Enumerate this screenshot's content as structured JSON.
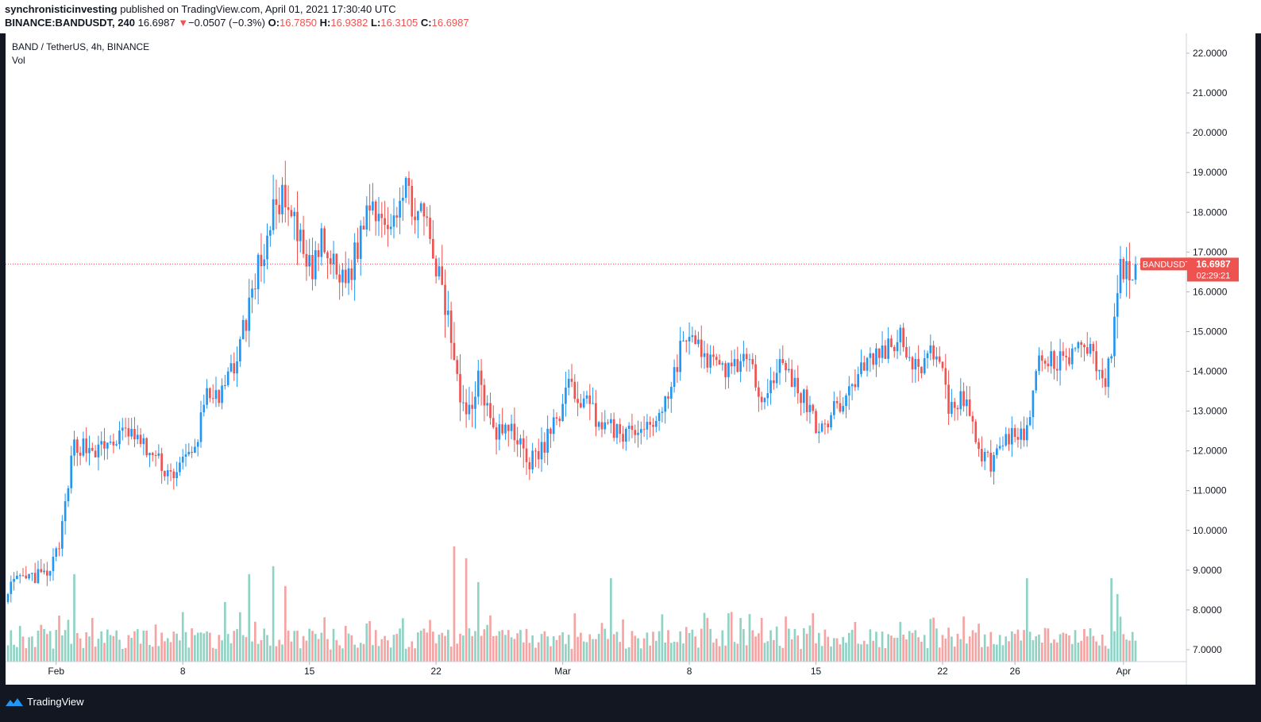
{
  "header": {
    "author": "synchronisticinvesting",
    "published_text": "published on TradingView.com, April 01, 2021 17:30:40 UTC",
    "symbol": "BINANCE:BANDUSDT, 240",
    "last": "16.6987",
    "change_icon": "triangle-down-icon",
    "change_arrow": "▼",
    "change": "−0.0507 (−0.3%)",
    "o_label": "O:",
    "o_value": "16.7850",
    "h_label": "H:",
    "h_value": "16.9382",
    "l_label": "L:",
    "l_value": "16.3105",
    "c_label": "C:",
    "c_value": "16.6987"
  },
  "chart_labels": {
    "title": "BAND / TetherUS, 4h, BINANCE",
    "volume": "Vol"
  },
  "price_tag": {
    "symbol": "BANDUSDT",
    "price": "16.6987",
    "countdown": "02:29:21"
  },
  "footer": {
    "brand": "TradingView",
    "logo_icon": "tradingview-logo-icon"
  },
  "colors": {
    "up": "#2196f3",
    "down": "#ef5350",
    "vol_up": "#8fd3c5",
    "vol_down": "#f5a3a3",
    "price_line": "#ef5350",
    "grid_border": "#cfd3dc"
  },
  "chart_data": {
    "type": "candlestick",
    "title": "BAND / TetherUS, 4h, BINANCE",
    "timeframe": "4h",
    "y_ticks": [
      "22.0000",
      "21.0000",
      "20.0000",
      "19.0000",
      "18.0000",
      "17.0000",
      "16.0000",
      "15.0000",
      "14.0000",
      "13.0000",
      "12.0000",
      "11.0000",
      "10.0000",
      "9.0000",
      "8.0000",
      "7.0000"
    ],
    "y_range": [
      6.7,
      22.5
    ],
    "x_ticks": [
      {
        "label": "Feb",
        "index": 16
      },
      {
        "label": "8",
        "index": 58
      },
      {
        "label": "15",
        "index": 100
      },
      {
        "label": "22",
        "index": 142
      },
      {
        "label": "Mar",
        "index": 184
      },
      {
        "label": "8",
        "index": 226
      },
      {
        "label": "15",
        "index": 268
      },
      {
        "label": "22",
        "index": 310
      },
      {
        "label": "26",
        "index": 334
      },
      {
        "label": "Apr",
        "index": 370
      }
    ],
    "last_price": 16.6987,
    "anchors": [
      [
        0,
        8.6,
        0.25
      ],
      [
        8,
        8.8,
        0.25
      ],
      [
        14,
        8.9,
        0.25
      ],
      [
        18,
        10.0,
        0.3
      ],
      [
        22,
        12.2,
        0.35
      ],
      [
        30,
        12.0,
        0.3
      ],
      [
        40,
        12.5,
        0.3
      ],
      [
        54,
        11.4,
        0.3
      ],
      [
        62,
        12.0,
        0.3
      ],
      [
        66,
        13.6,
        0.35
      ],
      [
        70,
        13.2,
        0.3
      ],
      [
        76,
        14.4,
        0.35
      ],
      [
        82,
        16.3,
        0.5
      ],
      [
        90,
        18.4,
        0.6
      ],
      [
        96,
        17.4,
        0.55
      ],
      [
        100,
        16.5,
        0.55
      ],
      [
        104,
        17.2,
        0.5
      ],
      [
        110,
        16.3,
        0.5
      ],
      [
        114,
        16.6,
        0.5
      ],
      [
        120,
        18.3,
        0.5
      ],
      [
        126,
        17.8,
        0.45
      ],
      [
        132,
        18.5,
        0.5
      ],
      [
        138,
        17.8,
        0.45
      ],
      [
        143,
        16.3,
        0.5
      ],
      [
        148,
        14.5,
        0.6
      ],
      [
        152,
        12.8,
        0.55
      ],
      [
        156,
        13.9,
        0.5
      ],
      [
        162,
        12.6,
        0.45
      ],
      [
        168,
        12.4,
        0.45
      ],
      [
        174,
        11.7,
        0.45
      ],
      [
        180,
        12.4,
        0.4
      ],
      [
        186,
        13.6,
        0.4
      ],
      [
        192,
        13.2,
        0.4
      ],
      [
        198,
        12.6,
        0.35
      ],
      [
        206,
        12.4,
        0.3
      ],
      [
        214,
        12.7,
        0.3
      ],
      [
        220,
        13.6,
        0.35
      ],
      [
        224,
        14.9,
        0.35
      ],
      [
        230,
        14.5,
        0.35
      ],
      [
        236,
        14.0,
        0.35
      ],
      [
        244,
        14.3,
        0.35
      ],
      [
        250,
        13.5,
        0.35
      ],
      [
        256,
        14.1,
        0.35
      ],
      [
        262,
        13.6,
        0.35
      ],
      [
        268,
        12.7,
        0.35
      ],
      [
        272,
        12.8,
        0.3
      ],
      [
        278,
        13.4,
        0.35
      ],
      [
        284,
        14.2,
        0.35
      ],
      [
        290,
        14.5,
        0.35
      ],
      [
        296,
        14.9,
        0.35
      ],
      [
        302,
        14.0,
        0.35
      ],
      [
        308,
        14.6,
        0.35
      ],
      [
        312,
        13.1,
        0.35
      ],
      [
        318,
        13.4,
        0.35
      ],
      [
        322,
        12.0,
        0.3
      ],
      [
        326,
        11.7,
        0.3
      ],
      [
        330,
        12.2,
        0.3
      ],
      [
        334,
        12.5,
        0.3
      ],
      [
        338,
        12.5,
        0.3
      ],
      [
        342,
        14.3,
        0.35
      ],
      [
        348,
        14.2,
        0.35
      ],
      [
        354,
        14.4,
        0.35
      ],
      [
        358,
        14.7,
        0.35
      ],
      [
        362,
        14.0,
        0.35
      ],
      [
        364,
        13.8,
        0.3
      ],
      [
        366,
        14.4,
        0.35
      ],
      [
        368,
        16.2,
        0.5
      ],
      [
        370,
        16.7,
        0.5
      ],
      [
        372,
        16.2,
        0.45
      ],
      [
        374,
        16.7,
        0.4
      ]
    ],
    "volume_spikes": [
      [
        4,
        7.6
      ],
      [
        22,
        8.9
      ],
      [
        28,
        7.8
      ],
      [
        72,
        8.2
      ],
      [
        80,
        8.9
      ],
      [
        88,
        9.1
      ],
      [
        92,
        8.6
      ],
      [
        112,
        7.6
      ],
      [
        148,
        9.6
      ],
      [
        152,
        9.3
      ],
      [
        156,
        8.7
      ],
      [
        200,
        8.8
      ],
      [
        232,
        7.8
      ],
      [
        250,
        7.8
      ],
      [
        296,
        7.7
      ],
      [
        338,
        8.8
      ],
      [
        366,
        8.8
      ],
      [
        368,
        8.4
      ]
    ]
  }
}
